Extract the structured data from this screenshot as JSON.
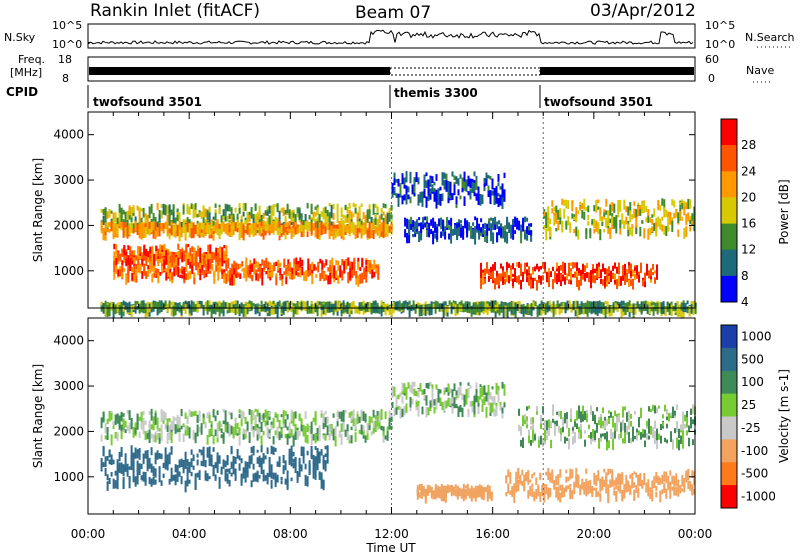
{
  "header": {
    "station": "Rankin Inlet (fitACF)",
    "beam": "Beam 07",
    "date": "03/Apr/2012"
  },
  "top_panels": {
    "nsky_label": "N.Sky",
    "nsky_ticks": [
      "10^5",
      "10^0"
    ],
    "nsearch_label": "N.Search",
    "nsearch_ticks": [
      "10^5",
      "10^0"
    ],
    "freq_label_1": "Freq.",
    "freq_label_2": "[MHz]",
    "freq_ticks": [
      "18",
      "8"
    ],
    "nave_label": "Nave",
    "nave_ticks": [
      "60",
      "0"
    ],
    "cpid_label": "CPID",
    "cpid_segments": [
      {
        "label": "twofsound 3501",
        "start_hour": 0,
        "end_hour": 12
      },
      {
        "label": "themis 3300",
        "start_hour": 12,
        "end_hour": 18
      },
      {
        "label": "twofsound 3501",
        "start_hour": 18,
        "end_hour": 24
      }
    ]
  },
  "chart_data": [
    {
      "type": "heatmap",
      "panel": "power",
      "ylabel": "Slant Range [km]",
      "xlabel": "Time UT",
      "xlim": [
        0,
        24
      ],
      "ylim": [
        180,
        4500
      ],
      "x_ticks": [
        "00:00",
        "04:00",
        "08:00",
        "12:00",
        "16:00",
        "20:00",
        "00:00"
      ],
      "y_ticks": [
        1000,
        2000,
        3000,
        4000
      ],
      "colorbar": {
        "label": "Power [dB]",
        "ticks": [
          "28",
          "24",
          "20",
          "16",
          "12",
          "8",
          "4"
        ],
        "colors": [
          "#ff0000",
          "#ff5500",
          "#ff9900",
          "#d7c800",
          "#3f8a2f",
          "#1f6a78",
          "#0000ff"
        ]
      },
      "bands": [
        {
          "t0": 0.5,
          "t1": 12,
          "r0": 2000,
          "r1": 2500,
          "level": 14
        },
        {
          "t0": 0.5,
          "t1": 12,
          "r0": 1900,
          "r1": 2100,
          "level": 20
        },
        {
          "t0": 1.0,
          "t1": 5.5,
          "r0": 1300,
          "r1": 1600,
          "level": 24
        },
        {
          "t0": 1.0,
          "t1": 11.5,
          "r0": 900,
          "r1": 1300,
          "level": 24
        },
        {
          "t0": 12,
          "t1": 16.5,
          "r0": 2600,
          "r1": 3200,
          "level": 6
        },
        {
          "t0": 12.5,
          "t1": 17.5,
          "r0": 1800,
          "r1": 2200,
          "level": 6
        },
        {
          "t0": 15.5,
          "t1": 22.5,
          "r0": 800,
          "r1": 1200,
          "level": 26
        },
        {
          "t0": 18,
          "t1": 24,
          "r0": 1900,
          "r1": 2600,
          "level": 16
        },
        {
          "t0": 0.5,
          "t1": 24,
          "r0": 200,
          "r1": 350,
          "level": 12
        }
      ]
    },
    {
      "type": "heatmap",
      "panel": "velocity",
      "ylabel": "Slant Range [km]",
      "xlabel": "Time UT",
      "xlim": [
        0,
        24
      ],
      "ylim": [
        180,
        4500
      ],
      "x_ticks": [
        "00:00",
        "04:00",
        "08:00",
        "12:00",
        "16:00",
        "20:00",
        "00:00"
      ],
      "y_ticks": [
        1000,
        2000,
        3000,
        4000
      ],
      "colorbar": {
        "label": "Velocity [m s-1]",
        "ticks": [
          "1000",
          "500",
          "100",
          "25",
          "-25",
          "-100",
          "-500",
          "-1000"
        ],
        "colors": [
          "#1a3fa8",
          "#2e6a8a",
          "#3f8a56",
          "#77cc33",
          "#c9c9c9",
          "#f1a35f",
          "#ff7a1a",
          "#ff0000"
        ]
      },
      "bands": [
        {
          "t0": 0.5,
          "t1": 12,
          "r0": 1900,
          "r1": 2500,
          "level": 0
        },
        {
          "t0": 0.5,
          "t1": 9.5,
          "r0": 900,
          "r1": 1700,
          "level": 300
        },
        {
          "t0": 12,
          "t1": 16.5,
          "r0": 2500,
          "r1": 3100,
          "level": 0
        },
        {
          "t0": 13,
          "t1": 16,
          "r0": 650,
          "r1": 850,
          "level": -300
        },
        {
          "t0": 16.5,
          "t1": 24,
          "r0": 650,
          "r1": 1200,
          "level": -300
        },
        {
          "t0": 17,
          "t1": 24,
          "r0": 1800,
          "r1": 2600,
          "level": 0
        }
      ]
    }
  ]
}
